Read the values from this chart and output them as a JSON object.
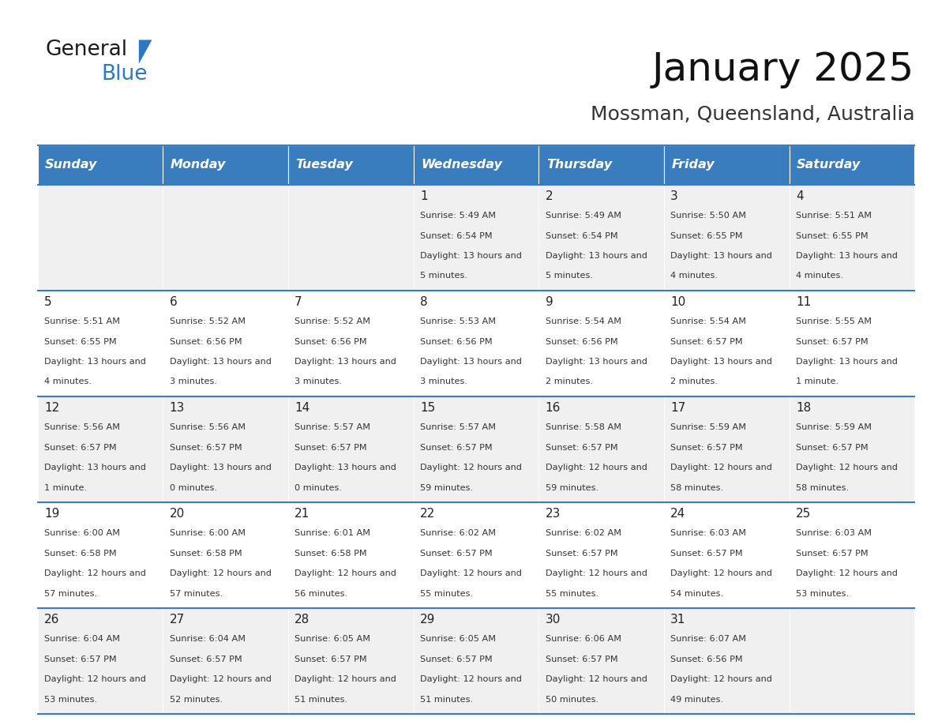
{
  "title": "January 2025",
  "subtitle": "Mossman, Queensland, Australia",
  "days_of_week": [
    "Sunday",
    "Monday",
    "Tuesday",
    "Wednesday",
    "Thursday",
    "Friday",
    "Saturday"
  ],
  "header_bg": "#3a7dbf",
  "header_text": "#ffffff",
  "cell_bg_light": "#f0f0f0",
  "cell_bg_white": "#ffffff",
  "border_color": "#3a7dbf",
  "text_color": "#333333",
  "calendar": [
    [
      null,
      null,
      null,
      {
        "day": 1,
        "sunrise": "5:49 AM",
        "sunset": "6:54 PM",
        "daylight": "13 hours and 5 minutes"
      },
      {
        "day": 2,
        "sunrise": "5:49 AM",
        "sunset": "6:54 PM",
        "daylight": "13 hours and 5 minutes"
      },
      {
        "day": 3,
        "sunrise": "5:50 AM",
        "sunset": "6:55 PM",
        "daylight": "13 hours and 4 minutes"
      },
      {
        "day": 4,
        "sunrise": "5:51 AM",
        "sunset": "6:55 PM",
        "daylight": "13 hours and 4 minutes"
      }
    ],
    [
      {
        "day": 5,
        "sunrise": "5:51 AM",
        "sunset": "6:55 PM",
        "daylight": "13 hours and 4 minutes"
      },
      {
        "day": 6,
        "sunrise": "5:52 AM",
        "sunset": "6:56 PM",
        "daylight": "13 hours and 3 minutes"
      },
      {
        "day": 7,
        "sunrise": "5:52 AM",
        "sunset": "6:56 PM",
        "daylight": "13 hours and 3 minutes"
      },
      {
        "day": 8,
        "sunrise": "5:53 AM",
        "sunset": "6:56 PM",
        "daylight": "13 hours and 3 minutes"
      },
      {
        "day": 9,
        "sunrise": "5:54 AM",
        "sunset": "6:56 PM",
        "daylight": "13 hours and 2 minutes"
      },
      {
        "day": 10,
        "sunrise": "5:54 AM",
        "sunset": "6:57 PM",
        "daylight": "13 hours and 2 minutes"
      },
      {
        "day": 11,
        "sunrise": "5:55 AM",
        "sunset": "6:57 PM",
        "daylight": "13 hours and 1 minute"
      }
    ],
    [
      {
        "day": 12,
        "sunrise": "5:56 AM",
        "sunset": "6:57 PM",
        "daylight": "13 hours and 1 minute"
      },
      {
        "day": 13,
        "sunrise": "5:56 AM",
        "sunset": "6:57 PM",
        "daylight": "13 hours and 0 minutes"
      },
      {
        "day": 14,
        "sunrise": "5:57 AM",
        "sunset": "6:57 PM",
        "daylight": "13 hours and 0 minutes"
      },
      {
        "day": 15,
        "sunrise": "5:57 AM",
        "sunset": "6:57 PM",
        "daylight": "12 hours and 59 minutes"
      },
      {
        "day": 16,
        "sunrise": "5:58 AM",
        "sunset": "6:57 PM",
        "daylight": "12 hours and 59 minutes"
      },
      {
        "day": 17,
        "sunrise": "5:59 AM",
        "sunset": "6:57 PM",
        "daylight": "12 hours and 58 minutes"
      },
      {
        "day": 18,
        "sunrise": "5:59 AM",
        "sunset": "6:57 PM",
        "daylight": "12 hours and 58 minutes"
      }
    ],
    [
      {
        "day": 19,
        "sunrise": "6:00 AM",
        "sunset": "6:58 PM",
        "daylight": "12 hours and 57 minutes"
      },
      {
        "day": 20,
        "sunrise": "6:00 AM",
        "sunset": "6:58 PM",
        "daylight": "12 hours and 57 minutes"
      },
      {
        "day": 21,
        "sunrise": "6:01 AM",
        "sunset": "6:58 PM",
        "daylight": "12 hours and 56 minutes"
      },
      {
        "day": 22,
        "sunrise": "6:02 AM",
        "sunset": "6:57 PM",
        "daylight": "12 hours and 55 minutes"
      },
      {
        "day": 23,
        "sunrise": "6:02 AM",
        "sunset": "6:57 PM",
        "daylight": "12 hours and 55 minutes"
      },
      {
        "day": 24,
        "sunrise": "6:03 AM",
        "sunset": "6:57 PM",
        "daylight": "12 hours and 54 minutes"
      },
      {
        "day": 25,
        "sunrise": "6:03 AM",
        "sunset": "6:57 PM",
        "daylight": "12 hours and 53 minutes"
      }
    ],
    [
      {
        "day": 26,
        "sunrise": "6:04 AM",
        "sunset": "6:57 PM",
        "daylight": "12 hours and 53 minutes"
      },
      {
        "day": 27,
        "sunrise": "6:04 AM",
        "sunset": "6:57 PM",
        "daylight": "12 hours and 52 minutes"
      },
      {
        "day": 28,
        "sunrise": "6:05 AM",
        "sunset": "6:57 PM",
        "daylight": "12 hours and 51 minutes"
      },
      {
        "day": 29,
        "sunrise": "6:05 AM",
        "sunset": "6:57 PM",
        "daylight": "12 hours and 51 minutes"
      },
      {
        "day": 30,
        "sunrise": "6:06 AM",
        "sunset": "6:57 PM",
        "daylight": "12 hours and 50 minutes"
      },
      {
        "day": 31,
        "sunrise": "6:07 AM",
        "sunset": "6:56 PM",
        "daylight": "12 hours and 49 minutes"
      },
      null
    ]
  ]
}
